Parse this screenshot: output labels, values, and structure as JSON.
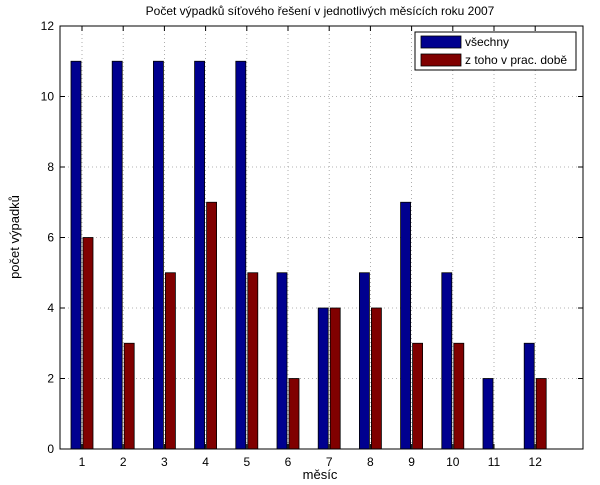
{
  "chart_data": {
    "type": "bar",
    "title": "Počet výpadků síťového řešení v jednotlivých měsících roku 2007",
    "xlabel": "měsíc",
    "ylabel": "počet výpadků",
    "categories": [
      "1",
      "2",
      "3",
      "4",
      "5",
      "6",
      "7",
      "8",
      "9",
      "10",
      "11",
      "12"
    ],
    "series": [
      {
        "name": "všechny",
        "color": "#00008f",
        "values": [
          11,
          11,
          11,
          11,
          11,
          5,
          4,
          5,
          7,
          5,
          2,
          3
        ]
      },
      {
        "name": "z toho v prac. době",
        "color": "#800000",
        "values": [
          6,
          3,
          5,
          7,
          5,
          2,
          4,
          4,
          3,
          3,
          0,
          2
        ]
      }
    ],
    "ylim": [
      0,
      12
    ],
    "yticks": [
      "0",
      "2",
      "4",
      "6",
      "8",
      "10",
      "12"
    ],
    "grid": true,
    "legend_position": "top-right"
  }
}
